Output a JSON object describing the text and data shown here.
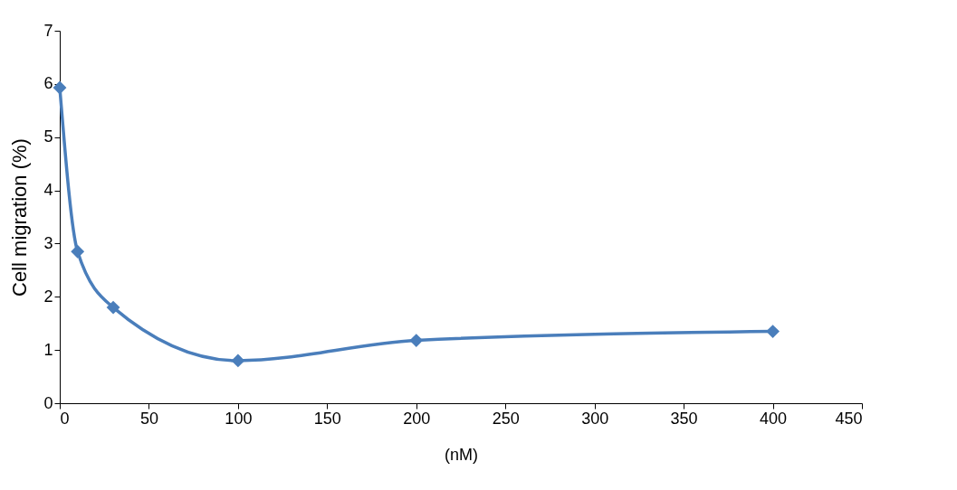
{
  "chart_data": {
    "type": "line",
    "xlabel": "(nM)",
    "ylabel": "Cell migration (%)",
    "x": [
      0,
      10,
      30,
      100,
      200,
      400
    ],
    "series": [
      {
        "color": "#4a7ebb",
        "values": [
          5.93,
          2.85,
          1.8,
          0.8,
          1.18,
          1.35
        ]
      }
    ],
    "xlim": [
      0,
      450
    ],
    "xticks": [
      0,
      50,
      100,
      150,
      200,
      250,
      300,
      350,
      400,
      450
    ],
    "ylim": [
      0,
      7
    ],
    "yticks": [
      0,
      1,
      2,
      3,
      4,
      5,
      6,
      7
    ],
    "grid": false,
    "marker": "diamond",
    "line_style": "solid"
  }
}
